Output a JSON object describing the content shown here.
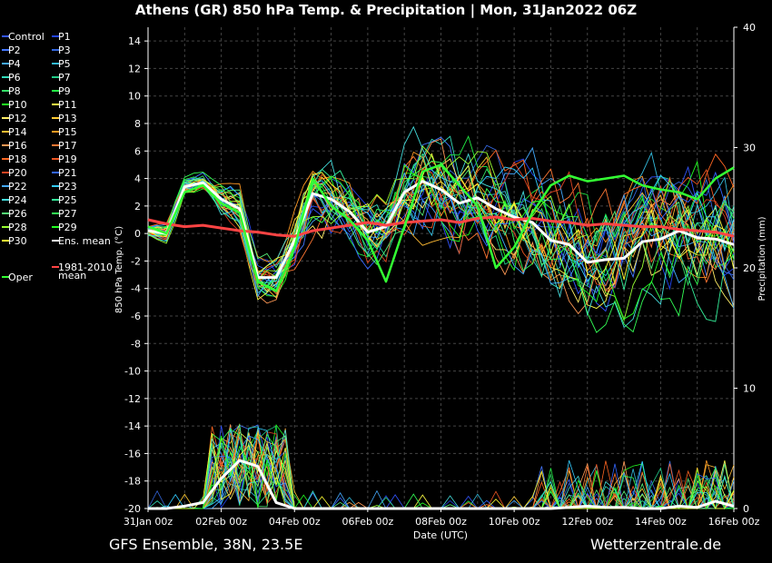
{
  "header": {
    "title": "Athens  (GR)  850 hPa Temp. & Precipitation | Mon, 31Jan2022 06Z"
  },
  "footer": {
    "left": "GFS Ensemble, 38N, 23.5E",
    "right": "Wetterzentrale.de"
  },
  "chart_data": {
    "type": "line",
    "xlabel": "Date (UTC)",
    "ylabel_left": "850 hPa Temp. (°C)",
    "ylabel_right": "Precipitation (mm)",
    "x_ticks": [
      "31Jan 00z",
      "02Feb 00z",
      "04Feb 00z",
      "06Feb 00z",
      "08Feb 00z",
      "10Feb 00z",
      "12Feb 00z",
      "14Feb 00z",
      "16Feb 00z"
    ],
    "x_range_days": [
      0,
      16
    ],
    "ylim_left": [
      -20,
      15
    ],
    "y_ticks_left": [
      14,
      12,
      10,
      8,
      6,
      4,
      2,
      0,
      -2,
      -4,
      -6,
      -8,
      -10,
      -12,
      -14,
      -16,
      -18,
      -20
    ],
    "ylim_right": [
      0,
      40
    ],
    "y_ticks_right": [
      40,
      30,
      20,
      10,
      0
    ],
    "grid": true,
    "legend_position": "left",
    "legend": [
      {
        "name": "Control",
        "color": "#3355ff"
      },
      {
        "name": "P1",
        "color": "#2244ee"
      },
      {
        "name": "P2",
        "color": "#4477ff"
      },
      {
        "name": "P3",
        "color": "#3366dd"
      },
      {
        "name": "P4",
        "color": "#44aaff"
      },
      {
        "name": "P5",
        "color": "#33bbdd"
      },
      {
        "name": "P6",
        "color": "#33ddbb"
      },
      {
        "name": "P7",
        "color": "#22cc88"
      },
      {
        "name": "P8",
        "color": "#33dd66"
      },
      {
        "name": "P9",
        "color": "#22ee44"
      },
      {
        "name": "P10",
        "color": "#22ff22"
      },
      {
        "name": "P11",
        "color": "#ffff44"
      },
      {
        "name": "P12",
        "color": "#ffee66"
      },
      {
        "name": "P13",
        "color": "#ffcc33"
      },
      {
        "name": "P14",
        "color": "#ffbb33"
      },
      {
        "name": "P15",
        "color": "#ff9922"
      },
      {
        "name": "P16",
        "color": "#ff9955"
      },
      {
        "name": "P17",
        "color": "#ff7733"
      },
      {
        "name": "P18",
        "color": "#ff6622"
      },
      {
        "name": "P19",
        "color": "#ee5522"
      },
      {
        "name": "P20",
        "color": "#dd4422"
      },
      {
        "name": "P21",
        "color": "#3366ff"
      },
      {
        "name": "P22",
        "color": "#44aaff"
      },
      {
        "name": "P23",
        "color": "#33ccff"
      },
      {
        "name": "P24",
        "color": "#44dddd"
      },
      {
        "name": "P25",
        "color": "#33ee99"
      },
      {
        "name": "P26",
        "color": "#55ee77"
      },
      {
        "name": "P27",
        "color": "#33ff55"
      },
      {
        "name": "P28",
        "color": "#99ff33"
      },
      {
        "name": "P29",
        "color": "#22ff22"
      },
      {
        "name": "P30",
        "color": "#ffff33"
      },
      {
        "name": "Ens. mean",
        "color": "#ffffff"
      },
      {
        "name": "1981-2010 mean",
        "color": "#ff4444"
      },
      {
        "name": "Oper",
        "color": "#33ff33"
      }
    ],
    "series": [
      {
        "name": "Ens. mean",
        "color": "#ffffff",
        "x": [
          0,
          0.5,
          1,
          1.5,
          2,
          2.5,
          3,
          3.5,
          4,
          4.5,
          5,
          5.5,
          6,
          6.5,
          7,
          7.5,
          8,
          8.5,
          9,
          9.5,
          10,
          10.5,
          11,
          11.5,
          12,
          12.5,
          13,
          13.5,
          14,
          14.5,
          15,
          15.5,
          16
        ],
        "y": [
          0.2,
          0,
          3.4,
          3.7,
          2.5,
          1.8,
          -3.2,
          -3.2,
          -0.5,
          2.9,
          2.5,
          1.6,
          0.1,
          0.5,
          3.0,
          3.8,
          3.2,
          2.2,
          2.6,
          1.8,
          1.2,
          0.8,
          -0.5,
          -0.8,
          -2.1,
          -1.9,
          -1.8,
          -0.6,
          -0.4,
          0.2,
          -0.3,
          -0.4,
          -0.8
        ]
      },
      {
        "name": "1981-2010 mean",
        "color": "#ff4444",
        "x": [
          0,
          0.5,
          1,
          1.5,
          2,
          2.5,
          3,
          3.5,
          4,
          4.5,
          5,
          5.5,
          6,
          6.5,
          7,
          7.5,
          8,
          8.5,
          9,
          9.5,
          10,
          10.5,
          11,
          11.5,
          12,
          12.5,
          13,
          13.5,
          14,
          14.5,
          15,
          15.5,
          16
        ],
        "y": [
          1.0,
          0.7,
          0.5,
          0.6,
          0.4,
          0.2,
          0.1,
          -0.1,
          -0.2,
          0.2,
          0.4,
          0.6,
          0.8,
          0.6,
          0.8,
          0.9,
          1.0,
          0.8,
          1.1,
          1.2,
          1.0,
          1.1,
          0.9,
          0.8,
          0.6,
          0.7,
          0.6,
          0.5,
          0.5,
          0.3,
          0.2,
          0.1,
          -0.2
        ]
      },
      {
        "name": "Oper",
        "color": "#33ff33",
        "x": [
          0,
          0.5,
          1,
          1.5,
          2,
          2.5,
          3,
          3.5,
          4,
          4.5,
          5,
          5.5,
          6,
          6.5,
          7,
          7.5,
          8,
          8.5,
          9,
          9.5,
          10,
          10.5,
          11,
          11.5,
          12,
          12.5,
          13,
          13.5,
          14,
          14.5,
          15,
          15.5,
          16
        ],
        "y": [
          0.5,
          0,
          3.0,
          3.5,
          2.2,
          1.5,
          -3.5,
          -4.2,
          -1.0,
          4.0,
          2.0,
          1.0,
          -0.5,
          -3.5,
          0.5,
          4.5,
          5.0,
          3.5,
          2.0,
          -2.5,
          -1.0,
          1.5,
          3.5,
          4.2,
          3.8,
          4.0,
          4.2,
          3.5,
          3.2,
          3.0,
          2.5,
          4.0,
          4.8
        ]
      },
      {
        "name": "Ens. mean precip (mm)",
        "color": "#ffffff",
        "x": [
          0,
          0.5,
          1,
          1.5,
          2,
          2.5,
          3,
          3.5,
          4,
          4.5,
          5,
          5.5,
          6,
          6.5,
          7,
          7.5,
          8,
          8.5,
          9,
          9.5,
          10,
          10.5,
          11,
          11.5,
          12,
          12.5,
          13,
          13.5,
          14,
          14.5,
          15,
          15.5,
          16
        ],
        "y": [
          0,
          0,
          0.2,
          0.5,
          2.5,
          4.0,
          3.5,
          0.5,
          0,
          0,
          0,
          0,
          0,
          0,
          0,
          0,
          0,
          0,
          0,
          0,
          0,
          0,
          0,
          0.1,
          0.2,
          0.1,
          0.1,
          0,
          0,
          0.2,
          0.1,
          0.6,
          0.2
        ]
      }
    ]
  }
}
